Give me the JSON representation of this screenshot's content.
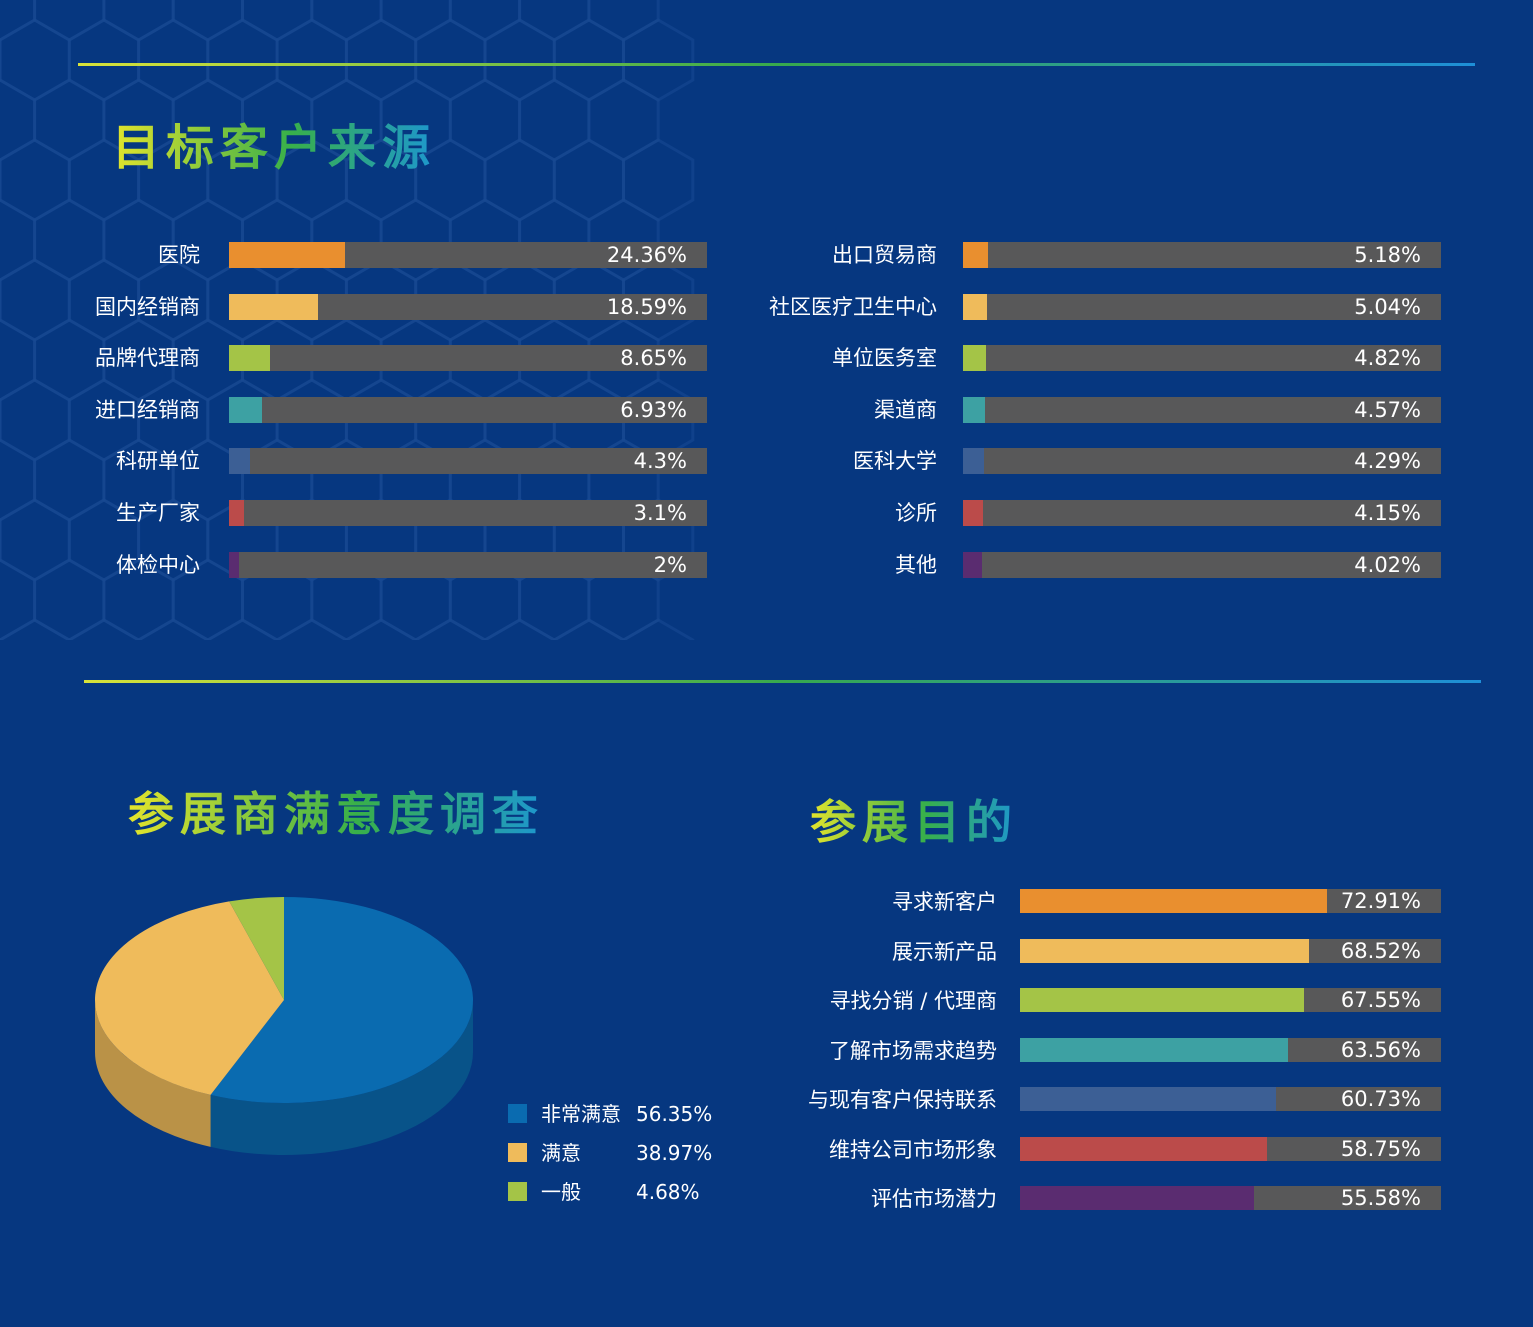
{
  "sections": {
    "source_title": "目标客户来源",
    "satisfaction_title": "参展商满意度调查",
    "purpose_title": "参展目的"
  },
  "colors": {
    "background": "#063780",
    "track": "#585859",
    "orange": "#e98f2f",
    "yellow": "#efbb5b",
    "green": "#a4c447",
    "teal": "#3da1a3",
    "slate": "#3c5f95",
    "red": "#bb4b4a",
    "purple": "#5a2c70",
    "pie_blue": "#0a6bb0",
    "pie_yellow": "#efbb5b",
    "pie_green": "#a4c447"
  },
  "chart_data": [
    {
      "type": "bar",
      "orientation": "horizontal",
      "title": "目标客户来源",
      "categories": [
        "医院",
        "国内经销商",
        "品牌代理商",
        "进口经销商",
        "科研单位",
        "生产厂家",
        "体检中心"
      ],
      "values": [
        24.36,
        18.59,
        8.65,
        6.93,
        4.3,
        3.1,
        2
      ],
      "value_labels": [
        "24.36%",
        "18.59%",
        "8.65%",
        "6.93%",
        "4.3%",
        "3.1%",
        "2%"
      ],
      "colors": [
        "orange",
        "yellow",
        "green",
        "teal",
        "slate",
        "red",
        "purple"
      ],
      "xlim": [
        0,
        100
      ]
    },
    {
      "type": "bar",
      "orientation": "horizontal",
      "title": "目标客户来源",
      "categories": [
        "出口贸易商",
        "社区医疗卫生中心",
        "单位医务室",
        "渠道商",
        "医科大学",
        "诊所",
        "其他"
      ],
      "values": [
        5.18,
        5.04,
        4.82,
        4.57,
        4.29,
        4.15,
        4.02
      ],
      "value_labels": [
        "5.18%",
        "5.04%",
        "4.82%",
        "4.57%",
        "4.29%",
        "4.15%",
        "4.02%"
      ],
      "colors": [
        "orange",
        "yellow",
        "green",
        "teal",
        "slate",
        "red",
        "purple"
      ],
      "xlim": [
        0,
        100
      ]
    },
    {
      "type": "pie",
      "title": "参展商满意度调查",
      "categories": [
        "非常满意",
        "满意",
        "一般"
      ],
      "values": [
        56.35,
        38.97,
        4.68
      ],
      "value_labels": [
        "56.35%",
        "38.97%",
        "4.68%"
      ],
      "colors": [
        "pie_blue",
        "pie_yellow",
        "pie_green"
      ],
      "style": "3d",
      "legend": "bottom-right"
    },
    {
      "type": "bar",
      "orientation": "horizontal",
      "title": "参展目的",
      "categories": [
        "寻求新客户",
        "展示新产品",
        "寻找分销 / 代理商",
        "了解市场需求趋势",
        "与现有客户保持联系",
        "维持公司市场形象",
        "评估市场潜力"
      ],
      "values": [
        72.91,
        68.52,
        67.55,
        63.56,
        60.73,
        58.75,
        55.58
      ],
      "value_labels": [
        "72.91%",
        "68.52%",
        "67.55%",
        "63.56%",
        "60.73%",
        "58.75%",
        "55.58%"
      ],
      "colors": [
        "orange",
        "yellow",
        "green",
        "teal",
        "slate",
        "red",
        "purple"
      ],
      "xlim": [
        0,
        100
      ]
    }
  ]
}
